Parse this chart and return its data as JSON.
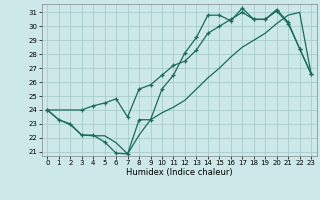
{
  "xlabel": "Humidex (Indice chaleur)",
  "bg_color": "#cce8e8",
  "grid_color": "#aacccc",
  "line_color": "#1a6b5a",
  "xlim": [
    -0.5,
    23.5
  ],
  "ylim": [
    20.7,
    31.6
  ],
  "xticks": [
    0,
    1,
    2,
    3,
    4,
    5,
    6,
    7,
    8,
    9,
    10,
    11,
    12,
    13,
    14,
    15,
    16,
    17,
    18,
    19,
    20,
    21,
    22,
    23
  ],
  "yticks": [
    21,
    22,
    23,
    24,
    25,
    26,
    27,
    28,
    29,
    30,
    31
  ],
  "line1_x": [
    0,
    1,
    2,
    3,
    4,
    5,
    6,
    7,
    8,
    9,
    10,
    11,
    12,
    13,
    14,
    15,
    16,
    17,
    18,
    19,
    20,
    21,
    22,
    23
  ],
  "line1_y": [
    24.0,
    23.3,
    23.0,
    22.2,
    22.2,
    21.7,
    20.9,
    20.85,
    23.3,
    23.3,
    25.5,
    26.5,
    28.1,
    29.2,
    30.8,
    30.8,
    30.4,
    31.3,
    30.5,
    30.5,
    31.2,
    30.3,
    28.4,
    26.6
  ],
  "line2_x": [
    0,
    3,
    4,
    5,
    6,
    7,
    8,
    9,
    10,
    11,
    12,
    13,
    14,
    15,
    16,
    17,
    18,
    19,
    20,
    21,
    22,
    23
  ],
  "line2_y": [
    24.0,
    24.0,
    24.3,
    24.5,
    24.8,
    23.5,
    25.5,
    25.8,
    26.5,
    27.2,
    27.5,
    28.3,
    29.5,
    30.0,
    30.5,
    31.0,
    30.5,
    30.5,
    31.1,
    30.2,
    28.4,
    26.6
  ],
  "line3_x": [
    0,
    1,
    2,
    3,
    4,
    5,
    6,
    7,
    8,
    9,
    10,
    11,
    12,
    13,
    14,
    15,
    16,
    17,
    18,
    19,
    20,
    21,
    22,
    23
  ],
  "line3_y": [
    24.0,
    23.3,
    22.95,
    22.2,
    22.15,
    22.15,
    21.65,
    20.85,
    22.2,
    23.3,
    23.8,
    24.2,
    24.7,
    25.5,
    26.3,
    27.0,
    27.8,
    28.5,
    29.0,
    29.5,
    30.2,
    30.8,
    31.0,
    26.6
  ]
}
